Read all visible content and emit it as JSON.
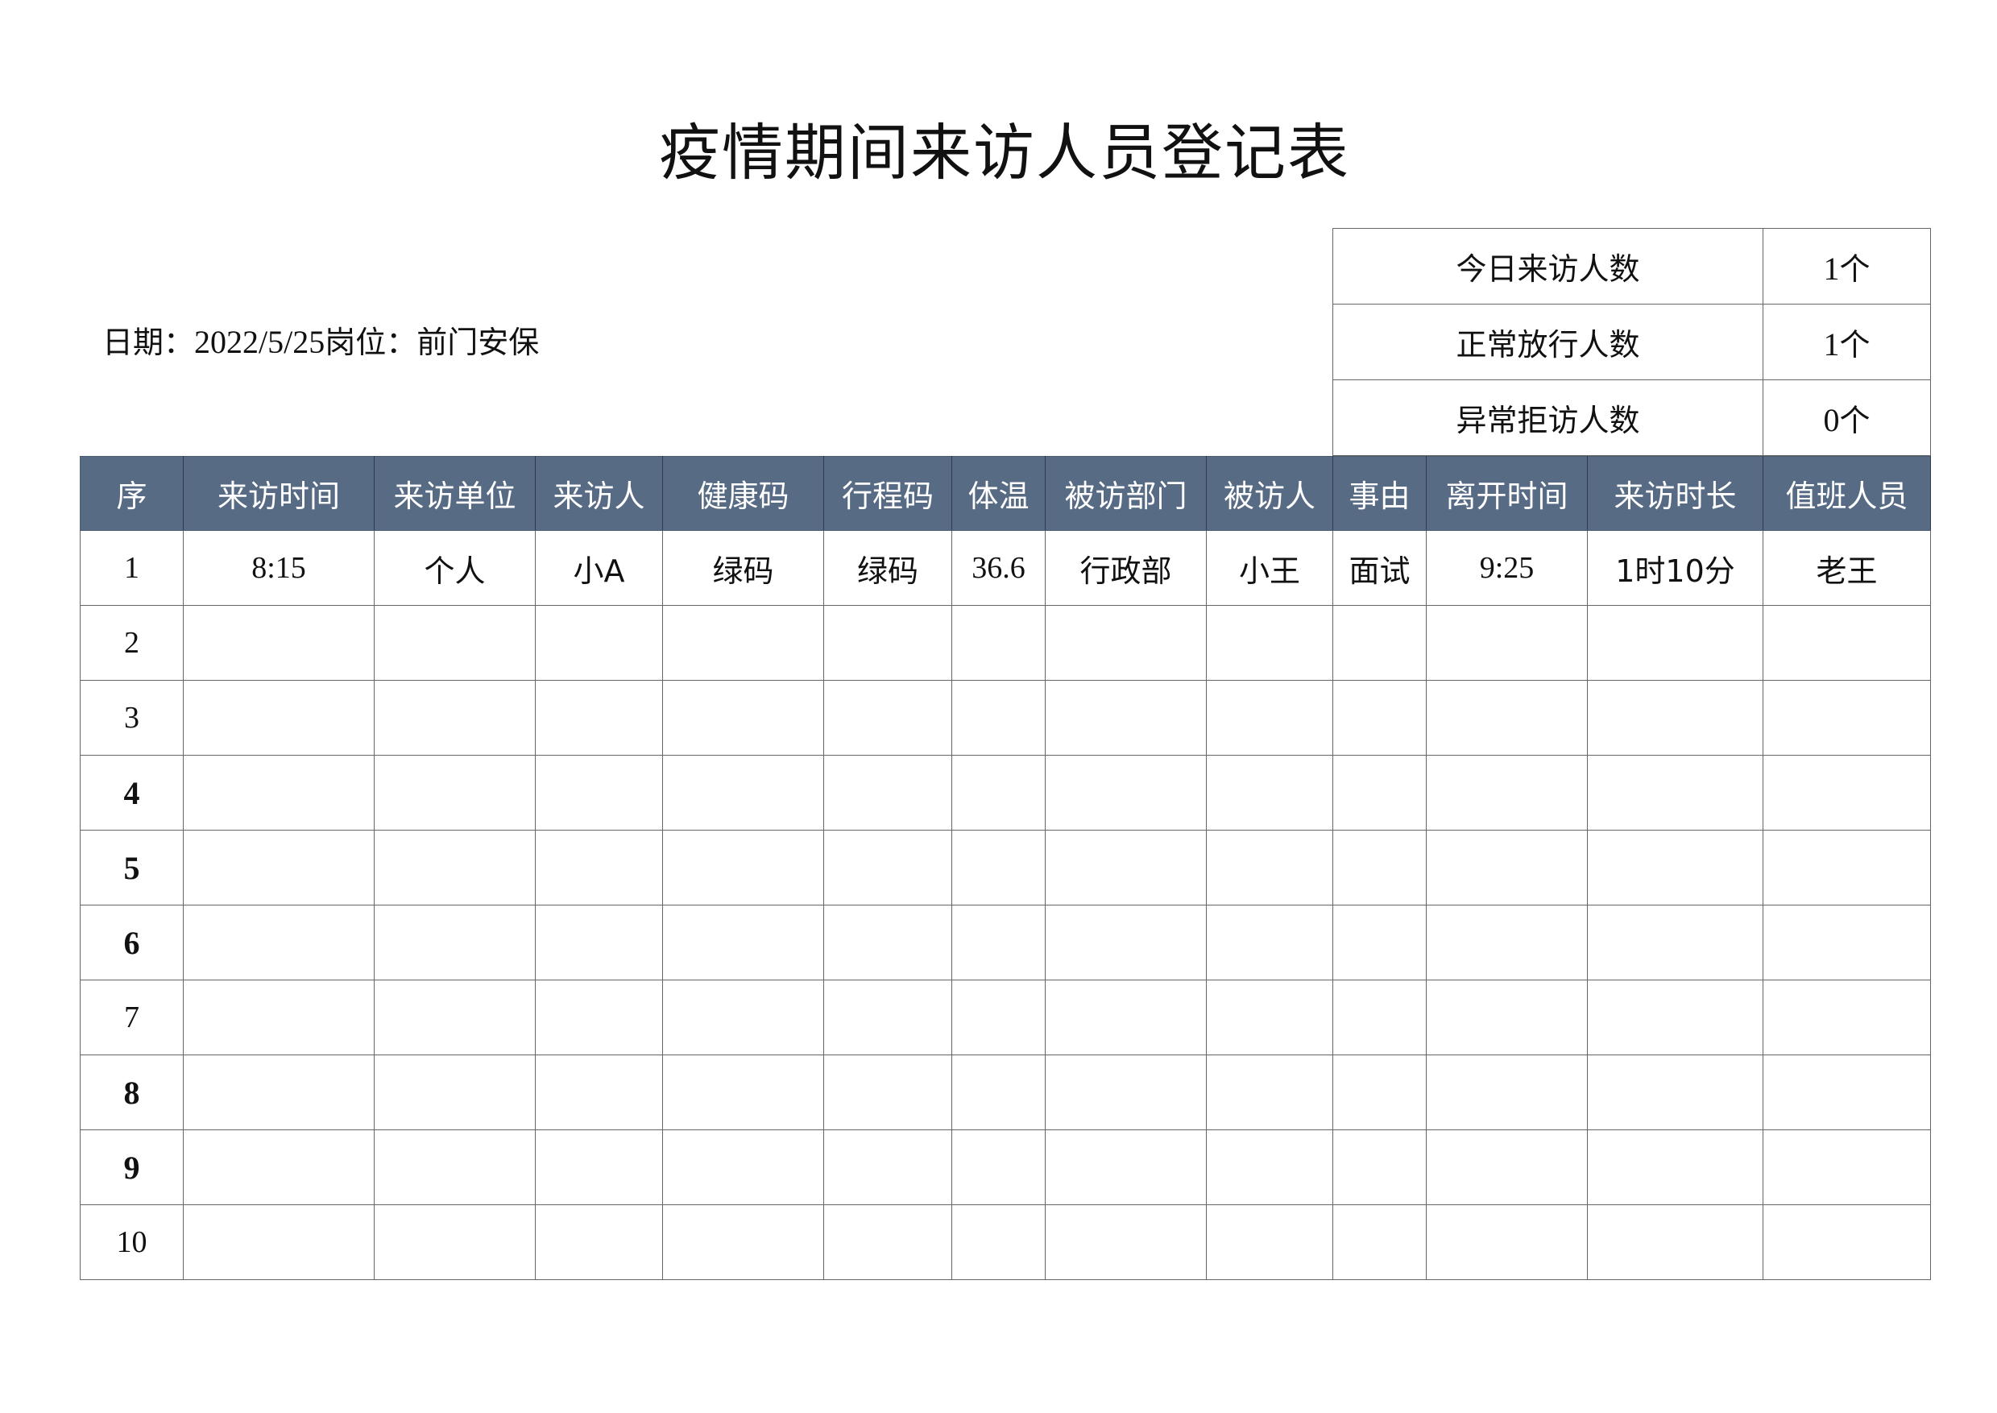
{
  "title": "疫情期间来访人员登记表",
  "date_label": "日期：",
  "date_value": "2022/5/25",
  "post_label": "岗位：前门安保",
  "summary": [
    {
      "label": "今日来访人数",
      "value": "1",
      "unit": "个"
    },
    {
      "label": "正常放行人数",
      "value": "1",
      "unit": "个"
    },
    {
      "label": "异常拒访人数",
      "value": "0",
      "unit": "个"
    }
  ],
  "colors": {
    "header_bg": "#576b85",
    "header_text": "#ffffff"
  },
  "columns": [
    "序",
    "来访时间",
    "来访单位",
    "来访人",
    "健康码",
    "行程码",
    "体温",
    "被访部门",
    "被访人",
    "事由",
    "离开时间",
    "来访时长",
    "值班人员"
  ],
  "rows": [
    [
      "1",
      "8:15",
      "个人",
      "小A",
      "绿码",
      "绿码",
      "36.6",
      "行政部",
      "小王",
      "面试",
      "9:25",
      "1时10分",
      "老王"
    ],
    [
      "2",
      "",
      "",
      "",
      "",
      "",
      "",
      "",
      "",
      "",
      "",
      "",
      ""
    ],
    [
      "3",
      "",
      "",
      "",
      "",
      "",
      "",
      "",
      "",
      "",
      "",
      "",
      ""
    ],
    [
      "4",
      "",
      "",
      "",
      "",
      "",
      "",
      "",
      "",
      "",
      "",
      "",
      ""
    ],
    [
      "5",
      "",
      "",
      "",
      "",
      "",
      "",
      "",
      "",
      "",
      "",
      "",
      ""
    ],
    [
      "6",
      "",
      "",
      "",
      "",
      "",
      "",
      "",
      "",
      "",
      "",
      "",
      ""
    ],
    [
      "7",
      "",
      "",
      "",
      "",
      "",
      "",
      "",
      "",
      "",
      "",
      "",
      ""
    ],
    [
      "8",
      "",
      "",
      "",
      "",
      "",
      "",
      "",
      "",
      "",
      "",
      "",
      ""
    ],
    [
      "9",
      "",
      "",
      "",
      "",
      "",
      "",
      "",
      "",
      "",
      "",
      "",
      ""
    ],
    [
      "10",
      "",
      "",
      "",
      "",
      "",
      "",
      "",
      "",
      "",
      "",
      "",
      ""
    ]
  ]
}
